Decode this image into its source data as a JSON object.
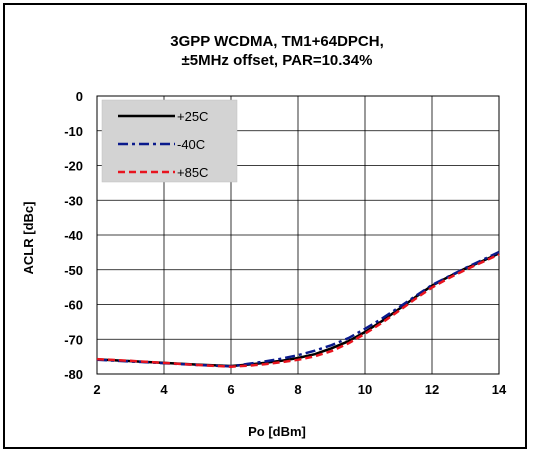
{
  "chart_data": {
    "type": "line",
    "title_line1": "3GPP WCDMA, TM1+64DPCH,",
    "title_line2": "±5MHz offset, PAR=10.34%",
    "xlabel": "Po [dBm]",
    "ylabel": "ACLR [dBc]",
    "xlim": [
      2,
      14
    ],
    "ylim": [
      -80,
      0
    ],
    "xticks": [
      2,
      4,
      6,
      8,
      10,
      12,
      14
    ],
    "yticks": [
      0,
      -10,
      -20,
      -30,
      -40,
      -50,
      -60,
      -70,
      -80
    ],
    "grid": true,
    "legend_position": "top-left",
    "series": [
      {
        "name": "+25C",
        "color": "#000000",
        "style": "solid",
        "x": [
          2,
          3,
          4,
          5,
          6,
          6.5,
          7,
          7.5,
          8,
          8.5,
          9,
          9.5,
          10,
          10.5,
          11,
          11.5,
          12,
          12.5,
          13,
          13.5,
          14
        ],
        "y": [
          -75.8,
          -76.3,
          -76.8,
          -77.3,
          -77.7,
          -77.3,
          -76.8,
          -76.2,
          -75.4,
          -74.3,
          -72.6,
          -70.6,
          -67.9,
          -64.8,
          -61.4,
          -57.9,
          -54.6,
          -52.0,
          -49.6,
          -47.5,
          -45.3
        ]
      },
      {
        "name": "-40C",
        "color": "#0a1a8c",
        "style": "dashdot",
        "x": [
          2,
          3,
          4,
          5,
          6,
          6.5,
          7,
          7.5,
          8,
          8.5,
          9,
          9.5,
          10,
          10.5,
          11,
          11.5,
          12,
          12.5,
          13,
          13.5,
          14
        ],
        "y": [
          -75.9,
          -76.4,
          -76.9,
          -77.4,
          -77.8,
          -77.1,
          -76.4,
          -75.6,
          -74.6,
          -73.3,
          -71.7,
          -69.7,
          -67.0,
          -64.1,
          -60.9,
          -57.6,
          -54.4,
          -51.9,
          -49.5,
          -47.2,
          -44.9
        ]
      },
      {
        "name": "+85C",
        "color": "#e8141e",
        "style": "dashed",
        "x": [
          2,
          3,
          4,
          5,
          6,
          6.5,
          7,
          7.5,
          8,
          8.5,
          9,
          9.5,
          10,
          10.5,
          11,
          11.5,
          12,
          12.5,
          13,
          13.5,
          14
        ],
        "y": [
          -75.7,
          -76.2,
          -76.8,
          -77.4,
          -77.9,
          -77.6,
          -77.2,
          -76.6,
          -75.9,
          -74.9,
          -73.4,
          -71.2,
          -68.4,
          -65.3,
          -61.9,
          -58.4,
          -55.1,
          -52.4,
          -50.0,
          -47.8,
          -45.6
        ]
      }
    ]
  }
}
